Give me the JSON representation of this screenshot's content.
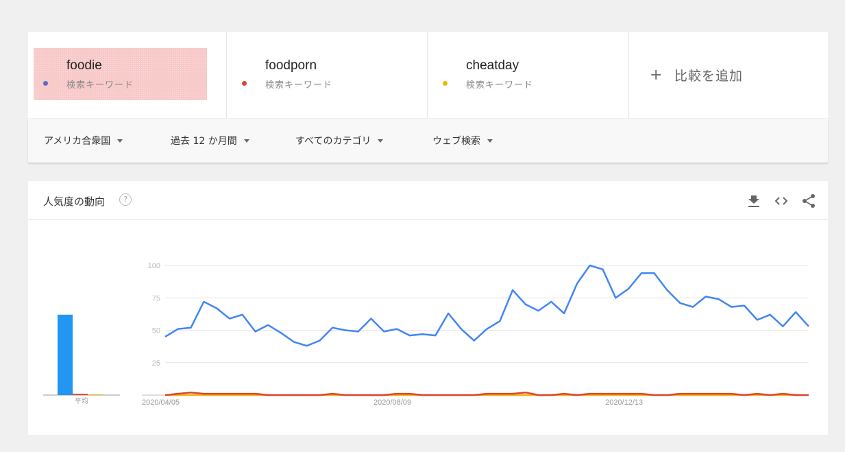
{
  "terms": [
    {
      "name": "foodie",
      "type": "検索キーワード",
      "color": "#5c6bc0",
      "highlighted": true
    },
    {
      "name": "foodporn",
      "type": "検索キーワード",
      "color": "#db4437",
      "highlighted": false
    },
    {
      "name": "cheatday",
      "type": "検索キーワード",
      "color": "#f4b400",
      "highlighted": false
    }
  ],
  "add_compare": {
    "icon": "+",
    "label": "比較を追加"
  },
  "filters": [
    {
      "label": "アメリカ合衆国"
    },
    {
      "label": "過去 12 か月間"
    },
    {
      "label": "すべてのカテゴリ"
    },
    {
      "label": "ウェブ検索"
    }
  ],
  "card": {
    "title": "人気度の動向",
    "help_icon": "?",
    "icons": [
      "download-icon",
      "embed-icon",
      "share-icon"
    ]
  },
  "chart_data": {
    "type": "line",
    "yticks": [
      25,
      50,
      75,
      100
    ],
    "ylim": [
      0,
      100
    ],
    "grid": true,
    "x_tick_labels": [
      {
        "label": "2020/04/05",
        "index": 0
      },
      {
        "label": "2020/08/09",
        "index": 18
      },
      {
        "label": "2020/12/13",
        "index": 36
      }
    ],
    "series": [
      {
        "color": "#4285f4",
        "values": [
          45,
          51,
          52,
          72,
          67,
          59,
          62,
          49,
          54,
          48,
          41,
          38,
          42,
          52,
          50,
          49,
          59,
          49,
          51,
          46,
          47,
          46,
          63,
          51,
          42,
          51,
          57,
          81,
          70,
          65,
          72,
          63,
          86,
          100,
          97,
          75,
          82,
          94,
          94,
          81,
          71,
          68,
          76,
          74,
          68,
          69,
          58,
          62,
          53,
          64,
          53
        ]
      },
      {
        "color": "#db4437",
        "values": [
          0,
          1,
          2,
          1,
          1,
          1,
          1,
          1,
          0,
          0,
          0,
          0,
          0,
          1,
          0,
          0,
          0,
          0,
          1,
          1,
          0,
          0,
          0,
          0,
          0,
          1,
          1,
          1,
          2,
          0,
          0,
          1,
          0,
          1,
          1,
          1,
          1,
          1,
          0,
          0,
          1,
          1,
          1,
          1,
          1,
          0,
          1,
          0,
          1,
          0,
          0
        ]
      },
      {
        "color": "#f4b400",
        "values": [
          0,
          0,
          0,
          0,
          0,
          0,
          0,
          0,
          0,
          0,
          0,
          0,
          0,
          0,
          0,
          0,
          0,
          0,
          0,
          0,
          0,
          0,
          0,
          0,
          0,
          0,
          0,
          0,
          0,
          0,
          0,
          0,
          0,
          0,
          0,
          0,
          0,
          0,
          0,
          0,
          0,
          0,
          0,
          0,
          0,
          0,
          0,
          0,
          0,
          0,
          0
        ]
      }
    ],
    "average": {
      "label": "平均",
      "values": [
        62,
        1,
        0
      ],
      "colors": [
        "#2196f3",
        "#db4437",
        "#f4b400"
      ]
    }
  }
}
